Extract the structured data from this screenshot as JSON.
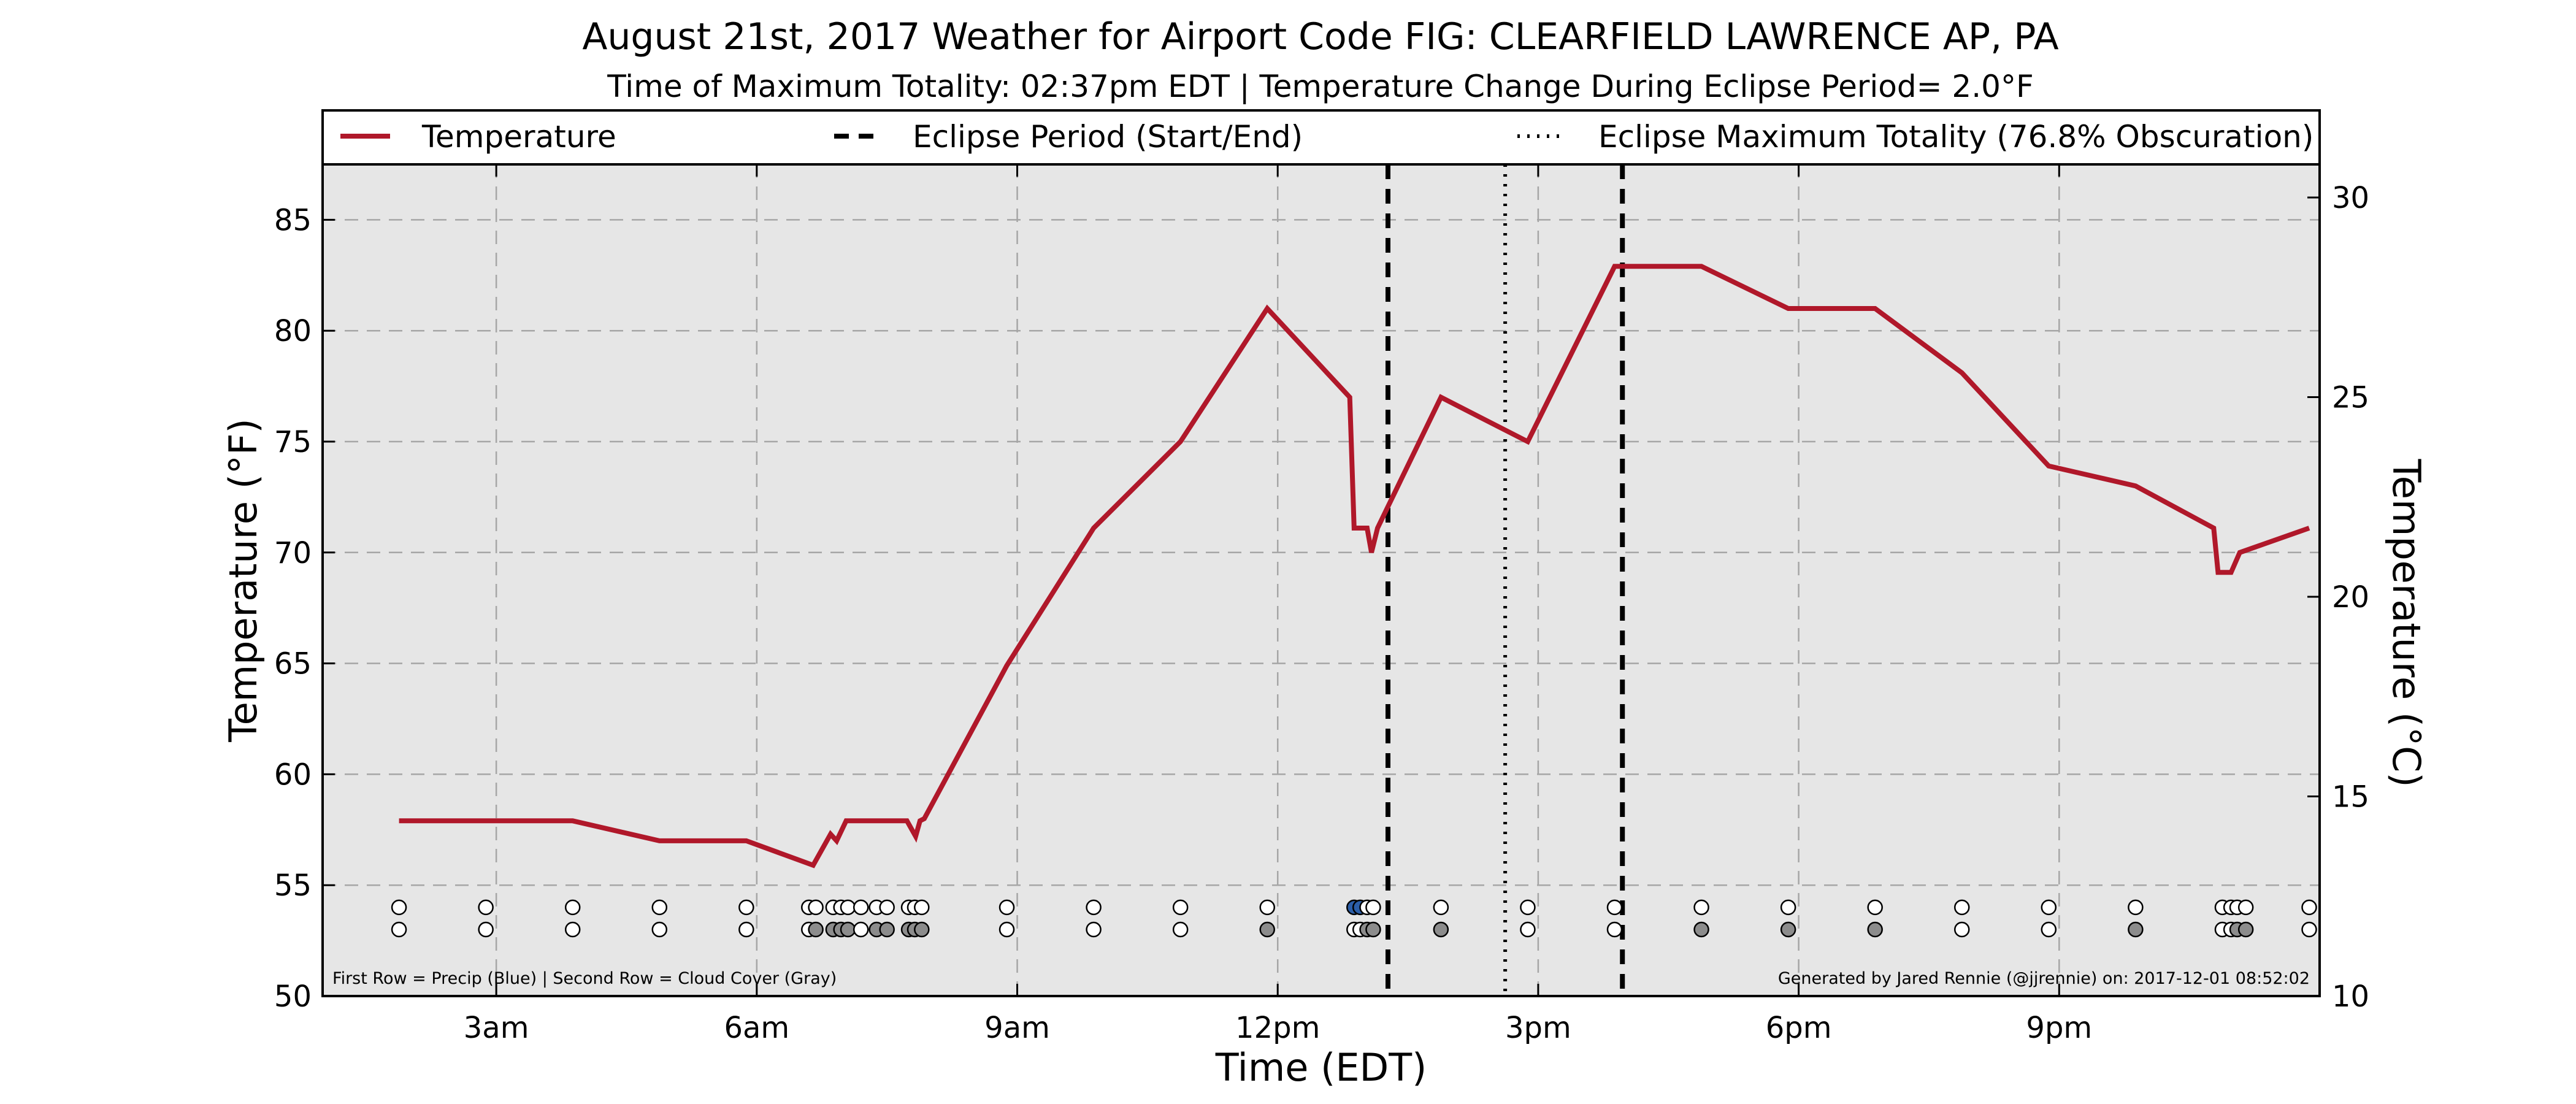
{
  "chart_data": {
    "type": "line",
    "title": "August 21st, 2017 Weather for Airport Code FIG: CLEARFIELD LAWRENCE AP, PA",
    "subtitle": "Time of Maximum Totality: 02:37pm EDT | Temperature Change During Eclipse Period= 2.0°F",
    "xlabel": "Time (EDT)",
    "ylabel": "Temperature (°F)",
    "ylabel_right": "Temperature (°C)",
    "x_unit": "hours since midnight EDT",
    "xlim": [
      1.0,
      24.0
    ],
    "ylim": [
      50,
      87.5
    ],
    "ylim_right": [
      10,
      30.83
    ],
    "grid": true,
    "legend_position": "top",
    "x_ticks": [
      {
        "x": 3,
        "label": "3am"
      },
      {
        "x": 6,
        "label": "6am"
      },
      {
        "x": 9,
        "label": "9am"
      },
      {
        "x": 12,
        "label": "12pm"
      },
      {
        "x": 15,
        "label": "3pm"
      },
      {
        "x": 18,
        "label": "6pm"
      },
      {
        "x": 21,
        "label": "9pm"
      }
    ],
    "y_ticks_left": [
      "50",
      "55",
      "60",
      "65",
      "70",
      "75",
      "80",
      "85"
    ],
    "y_ticks_right": [
      "10",
      "15",
      "20",
      "25",
      "30"
    ],
    "legend": [
      {
        "label": "Temperature",
        "style": "solid"
      },
      {
        "label": "Eclipse Period (Start/End)",
        "style": "dashed"
      },
      {
        "label": "Eclipse Maximum Totality (76.8% Obscuration)",
        "style": "dotted"
      }
    ],
    "series": [
      {
        "name": "Temperature",
        "color": "#b0182a",
        "x": [
          1.88,
          2.88,
          3.88,
          4.88,
          5.88,
          6.65,
          6.85,
          6.92,
          7.03,
          7.13,
          7.33,
          7.53,
          7.73,
          7.83,
          7.88,
          7.93,
          8.88,
          9.88,
          10.88,
          11.88,
          12.83,
          12.88,
          13.03,
          13.08,
          13.15,
          13.88,
          14.88,
          15.88,
          16.88,
          17.88,
          18.88,
          19.88,
          20.88,
          21.88,
          22.78,
          22.83,
          22.98,
          23.08,
          23.88
        ],
        "y": [
          57.9,
          57.9,
          57.9,
          57.0,
          57.0,
          55.9,
          57.3,
          57.0,
          57.9,
          57.9,
          57.9,
          57.9,
          57.9,
          57.2,
          57.9,
          58.0,
          64.9,
          71.1,
          75.0,
          81.0,
          77.0,
          71.1,
          71.1,
          70.0,
          71.1,
          77.0,
          75.0,
          82.9,
          82.9,
          81.0,
          81.0,
          78.1,
          73.9,
          73.0,
          71.1,
          69.1,
          69.1,
          70.0,
          71.1
        ]
      }
    ],
    "eclipse_period": {
      "start": 13.27,
      "end": 15.97,
      "max_totality": 14.62
    },
    "observation_rows": {
      "precip_row_y": 54.0,
      "cloud_row_y": 53.0,
      "times": [
        1.88,
        2.88,
        3.88,
        4.88,
        5.88,
        6.6,
        6.68,
        6.88,
        6.97,
        7.05,
        7.2,
        7.38,
        7.5,
        7.75,
        7.82,
        7.9,
        8.88,
        9.88,
        10.88,
        11.88,
        12.88,
        12.95,
        13.03,
        13.1,
        13.88,
        14.88,
        15.88,
        16.88,
        17.88,
        18.88,
        19.88,
        20.88,
        21.88,
        22.88,
        22.98,
        23.05,
        23.15,
        23.88
      ],
      "precip": [
        "none",
        "none",
        "none",
        "none",
        "none",
        "none",
        "none",
        "none",
        "none",
        "none",
        "none",
        "none",
        "none",
        "none",
        "none",
        "none",
        "none",
        "none",
        "none",
        "none",
        "blue",
        "blue",
        "none",
        "none",
        "none",
        "none",
        "none",
        "none",
        "none",
        "none",
        "none",
        "none",
        "none",
        "none",
        "none",
        "none",
        "none",
        "none"
      ],
      "cloud": [
        "clear",
        "clear",
        "clear",
        "clear",
        "clear",
        "clear",
        "gray",
        "gray",
        "gray",
        "gray",
        "clear",
        "gray",
        "gray",
        "gray",
        "gray",
        "gray",
        "clear",
        "clear",
        "clear",
        "gray",
        "clear",
        "clear",
        "gray",
        "gray",
        "gray",
        "clear",
        "clear",
        "gray",
        "gray",
        "gray",
        "clear",
        "clear",
        "gray",
        "clear",
        "clear",
        "gray",
        "gray",
        "clear"
      ]
    },
    "footnote_left": "First Row = Precip (Blue) | Second Row = Cloud Cover (Gray)",
    "footnote_right": "Generated by Jared Rennie (@jjrennie) on: 2017-12-01 08:52:02",
    "colors": {
      "plot_background": "#e6e6e6",
      "temperature_line": "#b0182a",
      "gridline": "#a6a6a6",
      "precip_marker": "#2b5ea8",
      "cloud_marker": "#8c8c8c",
      "clear_marker": "#ffffff"
    }
  }
}
